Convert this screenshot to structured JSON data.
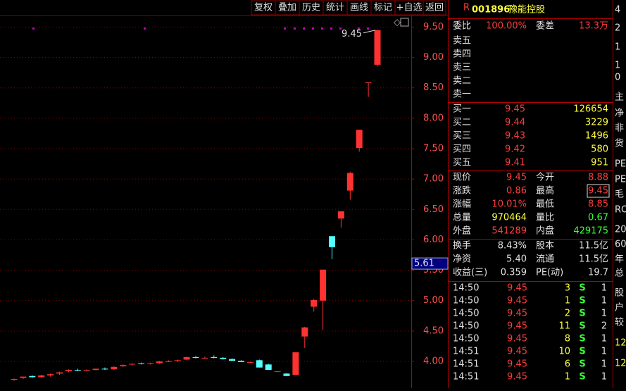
{
  "toolbar": [
    "复权",
    "叠加",
    "历史",
    "统计",
    "画线",
    "标记",
    "+自选",
    "返回"
  ],
  "chart_data": {
    "type": "candlestick",
    "up_color": "#ff3232",
    "down_color": "#54ffff",
    "candles": [
      [
        3.7,
        3.72,
        3.68,
        3.71
      ],
      [
        3.73,
        3.75,
        3.71,
        3.75
      ],
      [
        3.76,
        3.77,
        3.73,
        3.74
      ],
      [
        3.74,
        3.78,
        3.73,
        3.77
      ],
      [
        3.77,
        3.8,
        3.75,
        3.79
      ],
      [
        3.8,
        3.83,
        3.78,
        3.82
      ],
      [
        3.84,
        3.87,
        3.82,
        3.86
      ],
      [
        3.86,
        3.88,
        3.84,
        3.85
      ],
      [
        3.85,
        3.87,
        3.84,
        3.86
      ],
      [
        3.86,
        3.88,
        3.85,
        3.88
      ],
      [
        3.88,
        3.9,
        3.86,
        3.87
      ],
      [
        3.87,
        3.92,
        3.86,
        3.91
      ],
      [
        3.92,
        3.95,
        3.91,
        3.94
      ],
      [
        3.95,
        3.97,
        3.93,
        3.96
      ],
      [
        3.97,
        3.98,
        3.95,
        3.96
      ],
      [
        3.96,
        3.98,
        3.95,
        3.97
      ],
      [
        3.97,
        4.01,
        3.96,
        4.0
      ],
      [
        4.0,
        4.02,
        3.99,
        4.0
      ],
      [
        4.01,
        4.03,
        3.99,
        4.02
      ],
      [
        4.03,
        4.08,
        4.02,
        4.07
      ],
      [
        4.07,
        4.09,
        4.05,
        4.06
      ],
      [
        4.06,
        4.08,
        4.05,
        4.06
      ],
      [
        4.07,
        4.1,
        4.05,
        4.06
      ],
      [
        4.06,
        4.07,
        4.03,
        4.04
      ],
      [
        4.04,
        4.05,
        4.01,
        4.01
      ],
      [
        4.01,
        4.02,
        3.99,
        3.99
      ],
      [
        3.99,
        4.0,
        3.98,
        3.99
      ],
      [
        4.02,
        4.03,
        3.9,
        3.9
      ],
      [
        3.95,
        3.96,
        3.86,
        3.86
      ],
      [
        3.83,
        3.84,
        3.82,
        3.84
      ],
      [
        3.8,
        3.81,
        3.76,
        3.76
      ],
      [
        3.78,
        4.15,
        3.78,
        4.15
      ],
      [
        4.41,
        4.57,
        4.22,
        4.56
      ],
      [
        4.9,
        5.03,
        4.82,
        5.01
      ],
      [
        5.0,
        5.51,
        4.52,
        5.51
      ],
      [
        6.06,
        6.06,
        5.68,
        5.88
      ],
      [
        6.35,
        6.47,
        6.2,
        6.47
      ],
      [
        6.81,
        7.12,
        6.66,
        7.1
      ],
      [
        7.51,
        7.81,
        7.45,
        7.81
      ],
      [
        8.59,
        8.59,
        8.35,
        8.59
      ],
      [
        8.88,
        9.45,
        8.85,
        9.45
      ]
    ],
    "ylim": [
      3.56,
      9.69
    ],
    "yticks": [
      {
        "value": 4,
        "label": "4.00"
      },
      {
        "value": 4.5,
        "label": "4.50"
      },
      {
        "value": 5,
        "label": "5.00"
      },
      {
        "value": 5.5,
        "label": "5.50"
      },
      {
        "value": 6,
        "label": "6.00"
      },
      {
        "value": 6.5,
        "label": "6.50"
      },
      {
        "value": 7,
        "label": "7.00"
      },
      {
        "value": 7.5,
        "label": "7.50"
      },
      {
        "value": 8,
        "label": "8.00"
      },
      {
        "value": 8.5,
        "label": "8.50"
      },
      {
        "value": 9,
        "label": "9.00"
      },
      {
        "value": 9.5,
        "label": "9.50"
      }
    ],
    "grid": true,
    "high_annotation": 9.45,
    "cursor_price": 5.61
  },
  "quote": {
    "marker": "R",
    "code": "001896",
    "name": "豫能控股",
    "order_ratio": [
      "委比",
      "100.00%",
      "委差",
      "13.3万"
    ],
    "asks": [
      "卖五",
      "卖四",
      "卖三",
      "卖二",
      "卖一"
    ],
    "bids": [
      [
        "买一",
        "9.45",
        "126654"
      ],
      [
        "买二",
        "9.44",
        "3229"
      ],
      [
        "买三",
        "9.43",
        "1496"
      ],
      [
        "买四",
        "9.42",
        "580"
      ],
      [
        "买五",
        "9.41",
        "951"
      ]
    ],
    "stats": [
      [
        "现价",
        "9.45",
        "今开",
        "8.88"
      ],
      [
        "涨跌",
        "0.86",
        "最高",
        "9.45"
      ],
      [
        "涨幅",
        "10.01%",
        "最低",
        "8.85"
      ],
      [
        "总量",
        "970464",
        "量比",
        "0.67"
      ],
      [
        "外盘",
        "541289",
        "内盘",
        "429175"
      ]
    ],
    "fundamentals": [
      [
        "换手",
        "8.43%",
        "股本",
        "11.5亿"
      ],
      [
        "净资",
        "5.40",
        "流通",
        "11.5亿"
      ],
      [
        "收益(三)",
        "0.359",
        "PE(动)",
        "19.7"
      ]
    ],
    "trades": [
      [
        "14:50",
        "9.45",
        "3",
        "S",
        "1"
      ],
      [
        "14:50",
        "9.45",
        "1",
        "S",
        "1"
      ],
      [
        "14:50",
        "9.45",
        "2",
        "S",
        "1"
      ],
      [
        "14:50",
        "9.45",
        "11",
        "S",
        "2"
      ],
      [
        "14:50",
        "9.45",
        "8",
        "S",
        "1"
      ],
      [
        "14:51",
        "9.45",
        "10",
        "S",
        "1"
      ],
      [
        "14:51",
        "9.45",
        "6",
        "S",
        "1"
      ],
      [
        "14:51",
        "9.45",
        "1",
        "S",
        "1"
      ]
    ]
  },
  "side_panel": [
    "4",
    "2",
    "1",
    "1",
    "0",
    "主",
    "净",
    "非",
    "货",
    "PE",
    "PE",
    "毛",
    "RO",
    "20",
    "60",
    "年",
    "总",
    "股",
    "户",
    "较",
    "12",
    "12"
  ]
}
